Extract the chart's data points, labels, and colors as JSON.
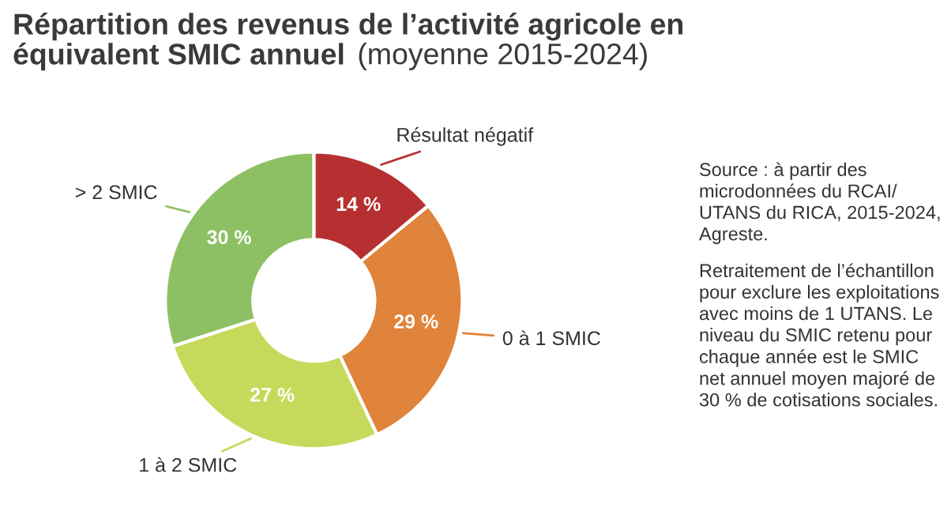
{
  "chart_data": {
    "type": "donut",
    "title": "Répartition des revenus de l’activité agricole en équivalent SMIC annuel",
    "subtitle": "(moyenne 2015-2024)",
    "categories": [
      "Résultat négatif",
      "0 à 1 SMIC",
      "1 à 2 SMIC",
      "> 2 SMIC"
    ],
    "values": [
      14,
      29,
      27,
      30
    ],
    "value_labels": [
      "14 %",
      "29 %",
      "27 %",
      "30 %"
    ],
    "colors": [
      "#b73031",
      "#e0833b",
      "#c6d95a",
      "#8dc063"
    ],
    "annotations": [
      "Source : à partir des microdonnées du RCAI/ UTANS du RICA, 2015-2024, Agreste.",
      "Retraitement de l’échantillon pour exclure les exploitations avec moins de 1 UTANS. Le niveau du SMIC retenu pour chaque année est le SMIC net annuel moyen majoré de 30 % de cotisations sociales."
    ],
    "legend": false
  }
}
